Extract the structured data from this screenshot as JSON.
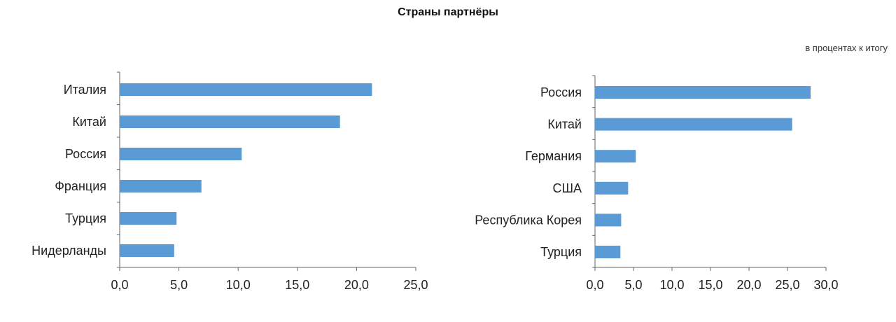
{
  "title": "Страны партнёры",
  "unit_note": "в процентах к итогу",
  "colors": {
    "bar": "#5b9bd5",
    "axis": "#666666"
  },
  "chart_data": [
    {
      "type": "bar",
      "orientation": "horizontal",
      "categories": [
        "Италия",
        "Китай",
        "Россия",
        "Франция",
        "Турция",
        "Нидерланды"
      ],
      "values": [
        21.3,
        18.6,
        10.3,
        6.9,
        4.8,
        4.6
      ],
      "xlim": [
        0,
        25
      ],
      "xticks": [
        "0,0",
        "5,0",
        "10,0",
        "15,0",
        "20,0",
        "25,0"
      ],
      "grid": false
    },
    {
      "type": "bar",
      "orientation": "horizontal",
      "categories": [
        "Россия",
        "Китай",
        "Германия",
        "США",
        "Республика Корея",
        "Турция"
      ],
      "values": [
        28.0,
        25.6,
        5.3,
        4.3,
        3.4,
        3.3
      ],
      "xlim": [
        0,
        30
      ],
      "xticks": [
        "0,0",
        "5,0",
        "10,0",
        "15,0",
        "20,0",
        "25,0",
        "30,0"
      ],
      "grid": false
    }
  ]
}
